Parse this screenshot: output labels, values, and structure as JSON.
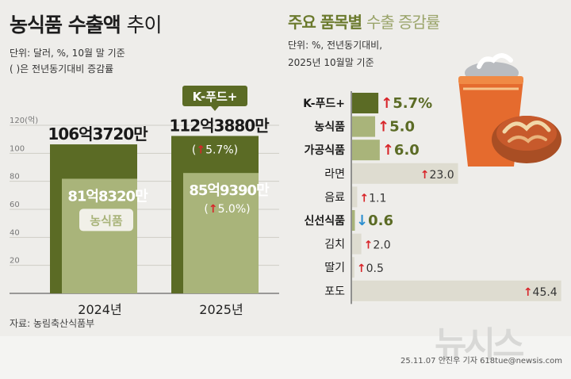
{
  "left": {
    "title_bold": "농식품 수출액",
    "title_light": "추이",
    "unit_note": "단위: 달러, %, 10월 말 기준",
    "paren_note": "( )은 전년동기대비 증감률"
  },
  "right": {
    "title_bold": "주요 품목별",
    "title_light": "수출 증감률",
    "unit_line1": "단위: %, 전년동기대비,",
    "unit_line2": "2025년 10월말 기준"
  },
  "source": "자료: 농림축산식품부",
  "credit": "25.11.07 안진우 기자 618tue@newsis.com",
  "watermark": "뉴시스",
  "colors": {
    "olive_dark": "#5b6b25",
    "olive_light": "#a9b47a",
    "pale": "#dedcd0",
    "up_arrow": "#d8252a",
    "down_arrow": "#2c8fd0"
  },
  "chart_data": [
    {
      "type": "bar",
      "title": "농식품 수출액 추이",
      "categories": [
        "2024년",
        "2025년"
      ],
      "series": [
        {
          "name": "K-푸드+",
          "values": [
            106.372,
            112.388
          ],
          "labels": [
            "106억3720만",
            "112억3880만"
          ],
          "change": [
            null,
            "5.7%"
          ]
        },
        {
          "name": "농식품",
          "values": [
            81.832,
            85.939
          ],
          "labels": [
            "81억8320만",
            "85억9390만"
          ],
          "change": [
            null,
            "5.0%"
          ]
        }
      ],
      "ylabel": "(억)",
      "ylim": [
        0,
        120
      ],
      "yticks": [
        "20",
        "40",
        "60",
        "80",
        "100",
        "120"
      ],
      "grid": true
    },
    {
      "type": "bar",
      "orientation": "horizontal",
      "title": "주요 품목별 수출 증감률",
      "categories": [
        "K-푸드+",
        "농식품",
        "가공식품",
        "라면",
        "음료",
        "신선식품",
        "김치",
        "딸기",
        "포도"
      ],
      "values": [
        5.7,
        5.0,
        6.0,
        23.0,
        1.1,
        -0.6,
        2.0,
        0.5,
        45.4
      ],
      "value_labels": [
        "5.7%",
        "5.0",
        "6.0",
        "23.0",
        "1.1",
        "0.6",
        "2.0",
        "0.5",
        "45.4"
      ],
      "highlighted": [
        "K-푸드+",
        "농식품",
        "가공식품",
        "신선식품"
      ]
    }
  ]
}
